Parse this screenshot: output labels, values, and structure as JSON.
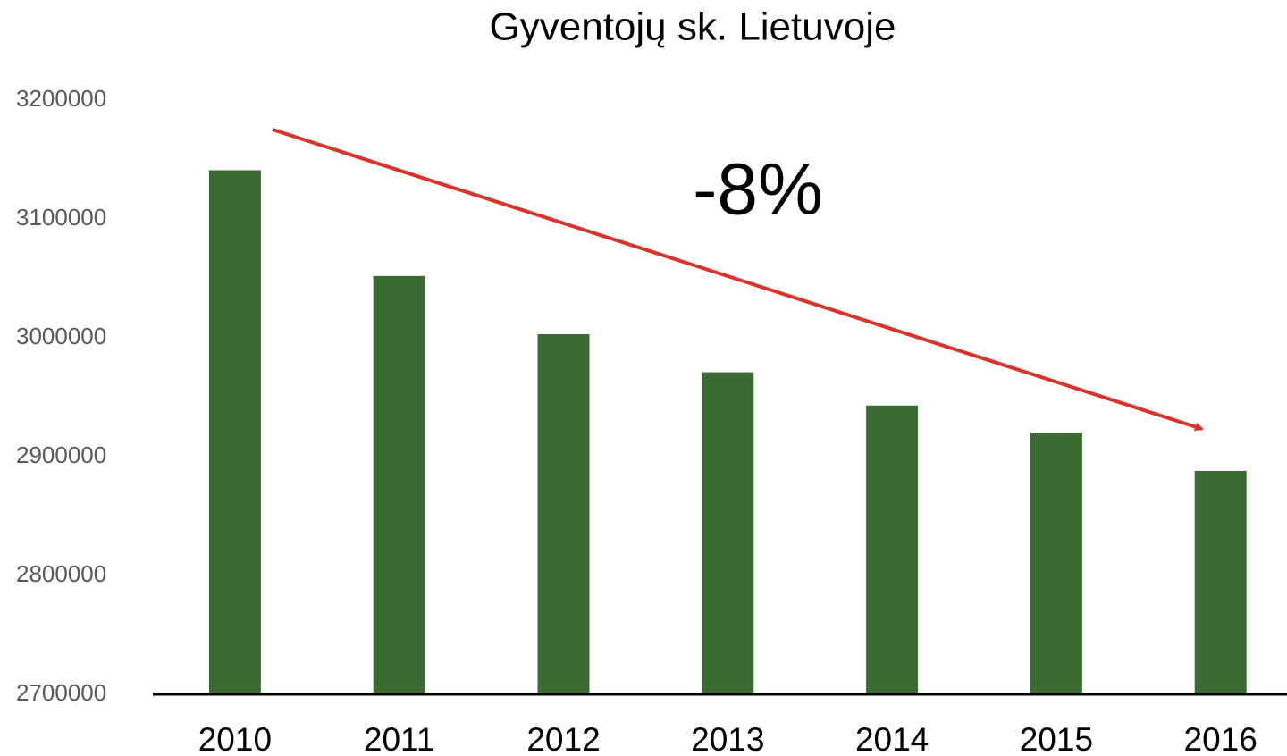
{
  "chart_data": {
    "type": "bar",
    "title": "Gyventojų sk. Lietuvoje",
    "annotation": "-8%",
    "categories": [
      "2010",
      "2011",
      "2012",
      "2013",
      "2014",
      "2015",
      "2016"
    ],
    "values": [
      3141000,
      3052000,
      3003000,
      2971000,
      2943000,
      2920000,
      2888000
    ],
    "color": "#3c6a33",
    "ylim": [
      2700000,
      3200000
    ],
    "yticks": [
      2700000,
      2800000,
      2900000,
      3000000,
      3100000,
      3200000
    ],
    "grid": false
  }
}
